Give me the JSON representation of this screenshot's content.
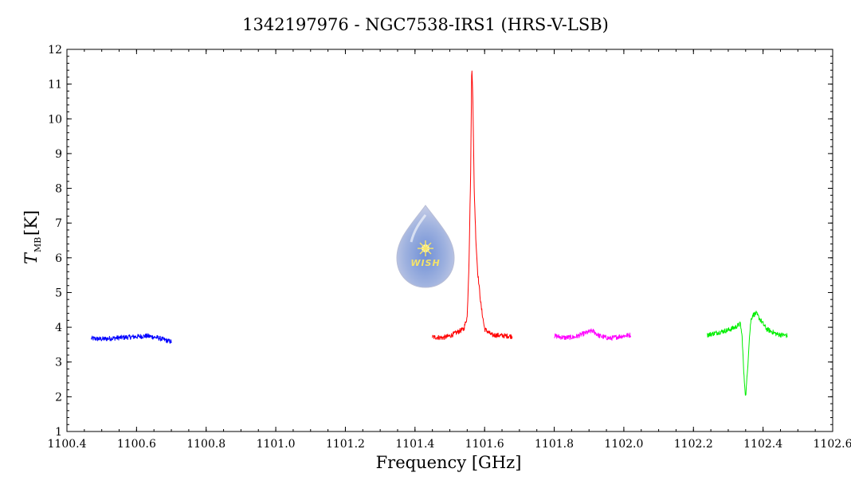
{
  "chart_data": {
    "type": "line",
    "title": "1342197976 - NGC7538-IRS1 (HRS-V-LSB)",
    "xlabel": "Frequency [GHz]",
    "ylabel_symbol": "T",
    "ylabel_subscript": "MB",
    "ylabel_unit": "[K]",
    "xlim": [
      1100.4,
      1102.6
    ],
    "ylim": [
      1,
      12
    ],
    "x_ticks": [
      "1100.4",
      "1100.6",
      "1100.8",
      "1101.0",
      "1101.2",
      "1101.4",
      "1101.6",
      "1101.8",
      "1102.0",
      "1102.2",
      "1102.4",
      "1102.6"
    ],
    "y_ticks": [
      "1",
      "2",
      "3",
      "4",
      "5",
      "6",
      "7",
      "8",
      "9",
      "10",
      "11",
      "12"
    ],
    "series": [
      {
        "color": "#0000ff",
        "x": [
          1100.47,
          1100.5,
          1100.55,
          1100.6,
          1100.63,
          1100.66,
          1100.7
        ],
        "y": [
          3.68,
          3.66,
          3.7,
          3.73,
          3.75,
          3.7,
          3.58
        ]
      },
      {
        "color": "#ff0000",
        "x": [
          1101.45,
          1101.48,
          1101.5,
          1101.52,
          1101.54,
          1101.55,
          1101.555,
          1101.56,
          1101.563,
          1101.566,
          1101.57,
          1101.575,
          1101.58,
          1101.59,
          1101.6,
          1101.62,
          1101.65,
          1101.68
        ],
        "y": [
          3.72,
          3.7,
          3.75,
          3.85,
          3.95,
          4.3,
          5.8,
          8.5,
          11.5,
          10.8,
          8.0,
          6.5,
          5.6,
          4.6,
          3.95,
          3.78,
          3.76,
          3.74
        ]
      },
      {
        "color": "#ff00ff",
        "x": [
          1101.8,
          1101.83,
          1101.86,
          1101.88,
          1101.91,
          1101.93,
          1101.96,
          1101.99,
          1102.02
        ],
        "y": [
          3.75,
          3.7,
          3.72,
          3.8,
          3.9,
          3.75,
          3.68,
          3.74,
          3.78
        ]
      },
      {
        "color": "#00ee00",
        "x": [
          1102.24,
          1102.27,
          1102.3,
          1102.32,
          1102.335,
          1102.34,
          1102.345,
          1102.35,
          1102.355,
          1102.36,
          1102.365,
          1102.37,
          1102.38,
          1102.39,
          1102.41,
          1102.44,
          1102.47
        ],
        "y": [
          3.78,
          3.85,
          3.92,
          4.0,
          4.1,
          3.7,
          2.6,
          2.0,
          2.7,
          3.6,
          4.2,
          4.35,
          4.4,
          4.25,
          3.95,
          3.8,
          3.76
        ]
      }
    ],
    "grid": false,
    "legend": "none"
  },
  "logo": {
    "text": "WISH"
  }
}
